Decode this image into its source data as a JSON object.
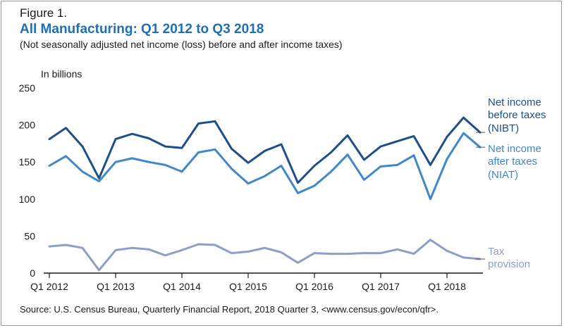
{
  "figure": {
    "label": "Figure 1.",
    "title": "All Manufacturing: Q1 2012 to Q3 2018",
    "subtitle": "(Not seasonally adjusted net income (loss) before and after income taxes)",
    "source": "Source: U.S. Census Bureau, Quarterly Financial Report, 2018 Quarter 3, <www.census.gov/econ/qfr>."
  },
  "colors": {
    "nibt": "#1d4f8c",
    "niat": "#3f88c9",
    "tax": "#8f9ec9",
    "title": "#1e6fb5"
  },
  "chart_data": {
    "type": "line",
    "ylabel": "In billions",
    "ylim": [
      0,
      250
    ],
    "yticks": [
      0,
      50,
      100,
      150,
      200,
      250
    ],
    "grid": false,
    "legend": "right, labels at line ends",
    "x": [
      "Q1 2012",
      "Q2 2012",
      "Q3 2012",
      "Q4 2012",
      "Q1 2013",
      "Q2 2013",
      "Q3 2013",
      "Q4 2013",
      "Q1 2014",
      "Q2 2014",
      "Q3 2014",
      "Q4 2014",
      "Q1 2015",
      "Q2 2015",
      "Q3 2015",
      "Q4 2015",
      "Q1 2016",
      "Q2 2016",
      "Q3 2016",
      "Q4 2016",
      "Q1 2017",
      "Q2 2017",
      "Q3 2017",
      "Q4 2017",
      "Q1 2018",
      "Q2 2018",
      "Q3 2018"
    ],
    "xtick_labels": [
      "Q1 2012",
      "Q1 2013",
      "Q1 2014",
      "Q1 2015",
      "Q1 2016",
      "Q1 2017",
      "Q1 2018"
    ],
    "series": [
      {
        "name": "Net income before taxes (NIBT)",
        "label_lines": [
          "Net income",
          "before taxes",
          "(NIBT)"
        ],
        "color_key": "nibt",
        "values": [
          181,
          196,
          171,
          128,
          181,
          188,
          182,
          171,
          169,
          202,
          205,
          168,
          149,
          165,
          174,
          122,
          145,
          163,
          186,
          153,
          171,
          178,
          185,
          146,
          184,
          210,
          190
        ]
      },
      {
        "name": "Net income after taxes (NIAT)",
        "label_lines": [
          "Net income",
          "after taxes",
          "(NIAT)"
        ],
        "color_key": "niat",
        "values": [
          145,
          158,
          137,
          124,
          150,
          155,
          150,
          146,
          137,
          163,
          167,
          141,
          121,
          131,
          145,
          108,
          118,
          137,
          160,
          126,
          144,
          146,
          159,
          100,
          154,
          189,
          170
        ]
      },
      {
        "name": "Tax provision",
        "label_lines": [
          "Tax",
          "provision"
        ],
        "color_key": "tax",
        "values": [
          36,
          38,
          34,
          4,
          31,
          34,
          32,
          24,
          31,
          39,
          38,
          27,
          29,
          34,
          28,
          14,
          27,
          26,
          26,
          27,
          27,
          32,
          26,
          45,
          30,
          21,
          19
        ]
      }
    ]
  }
}
